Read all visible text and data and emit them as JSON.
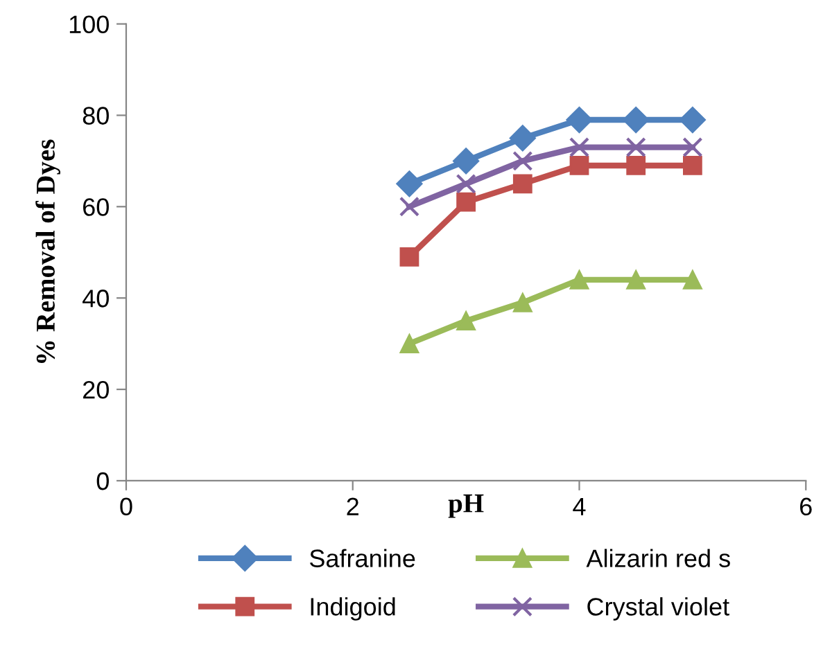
{
  "chart_data": {
    "type": "line",
    "xlabel": "pH",
    "ylabel": "% Removal of Dyes",
    "x": [
      2.5,
      3,
      3.5,
      4,
      4.5,
      5
    ],
    "series": [
      {
        "name": "Safranine",
        "color": "#4f81bd",
        "marker": "diamond",
        "values": [
          65,
          70,
          75,
          79,
          79,
          79
        ]
      },
      {
        "name": "Indigoid",
        "color": "#c0504d",
        "marker": "square",
        "values": [
          49,
          61,
          65,
          69,
          69,
          69
        ]
      },
      {
        "name": "Alizarin red s",
        "color": "#9bbb59",
        "marker": "triangle",
        "values": [
          30,
          35,
          39,
          44,
          44,
          44
        ]
      },
      {
        "name": "Crystal violet",
        "color": "#8064a2",
        "marker": "cross",
        "values": [
          60,
          65,
          70,
          73,
          73,
          73
        ]
      }
    ],
    "xlim": [
      0,
      6
    ],
    "xticks": [
      0,
      2,
      4,
      6
    ],
    "ylim": [
      0,
      100
    ],
    "yticks": [
      0,
      20,
      40,
      60,
      80,
      100
    ],
    "grid": false,
    "legend": "bottom",
    "line_style": "solid"
  }
}
